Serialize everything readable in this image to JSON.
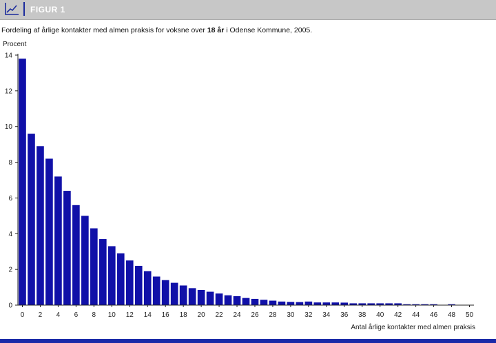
{
  "header": {
    "label": "FIGUR 1",
    "icon": "line-chart-icon"
  },
  "caption": {
    "prefix": "Fordeling af årlige kontakter med almen praksis for voksne over ",
    "bold": "18 år",
    "suffix": " i Odense Kommune, 2005."
  },
  "colors": {
    "bar": "#1010a8",
    "header_bg": "#c7c7c7",
    "accent": "#1a2aa8"
  },
  "chart_data": {
    "type": "bar",
    "ylabel": "Procent",
    "xlabel": "Antal årlige kontakter med almen praksis",
    "ylim": [
      0,
      14
    ],
    "yticks": [
      0,
      2,
      4,
      6,
      8,
      10,
      12,
      14
    ],
    "xticks": [
      0,
      2,
      4,
      6,
      8,
      10,
      12,
      14,
      16,
      18,
      20,
      22,
      24,
      26,
      28,
      30,
      32,
      34,
      36,
      38,
      40,
      42,
      44,
      46,
      48,
      50
    ],
    "categories": [
      0,
      1,
      2,
      3,
      4,
      5,
      6,
      7,
      8,
      9,
      10,
      11,
      12,
      13,
      14,
      15,
      16,
      17,
      18,
      19,
      20,
      21,
      22,
      23,
      24,
      25,
      26,
      27,
      28,
      29,
      30,
      31,
      32,
      33,
      34,
      35,
      36,
      37,
      38,
      39,
      40,
      41,
      42,
      43,
      44,
      45,
      46,
      47,
      48,
      49,
      50
    ],
    "values": [
      13.8,
      9.6,
      8.9,
      8.2,
      7.2,
      6.4,
      5.6,
      5.0,
      4.3,
      3.7,
      3.3,
      2.9,
      2.5,
      2.2,
      1.9,
      1.6,
      1.4,
      1.25,
      1.1,
      0.95,
      0.85,
      0.75,
      0.65,
      0.55,
      0.5,
      0.4,
      0.35,
      0.3,
      0.25,
      0.2,
      0.18,
      0.17,
      0.2,
      0.15,
      0.15,
      0.15,
      0.14,
      0.1,
      0.1,
      0.1,
      0.1,
      0.1,
      0.1,
      0.05,
      0.05,
      0.05,
      0.05,
      0.0,
      0.05,
      0.0,
      0.0
    ],
    "grid": false,
    "legend": "none"
  }
}
